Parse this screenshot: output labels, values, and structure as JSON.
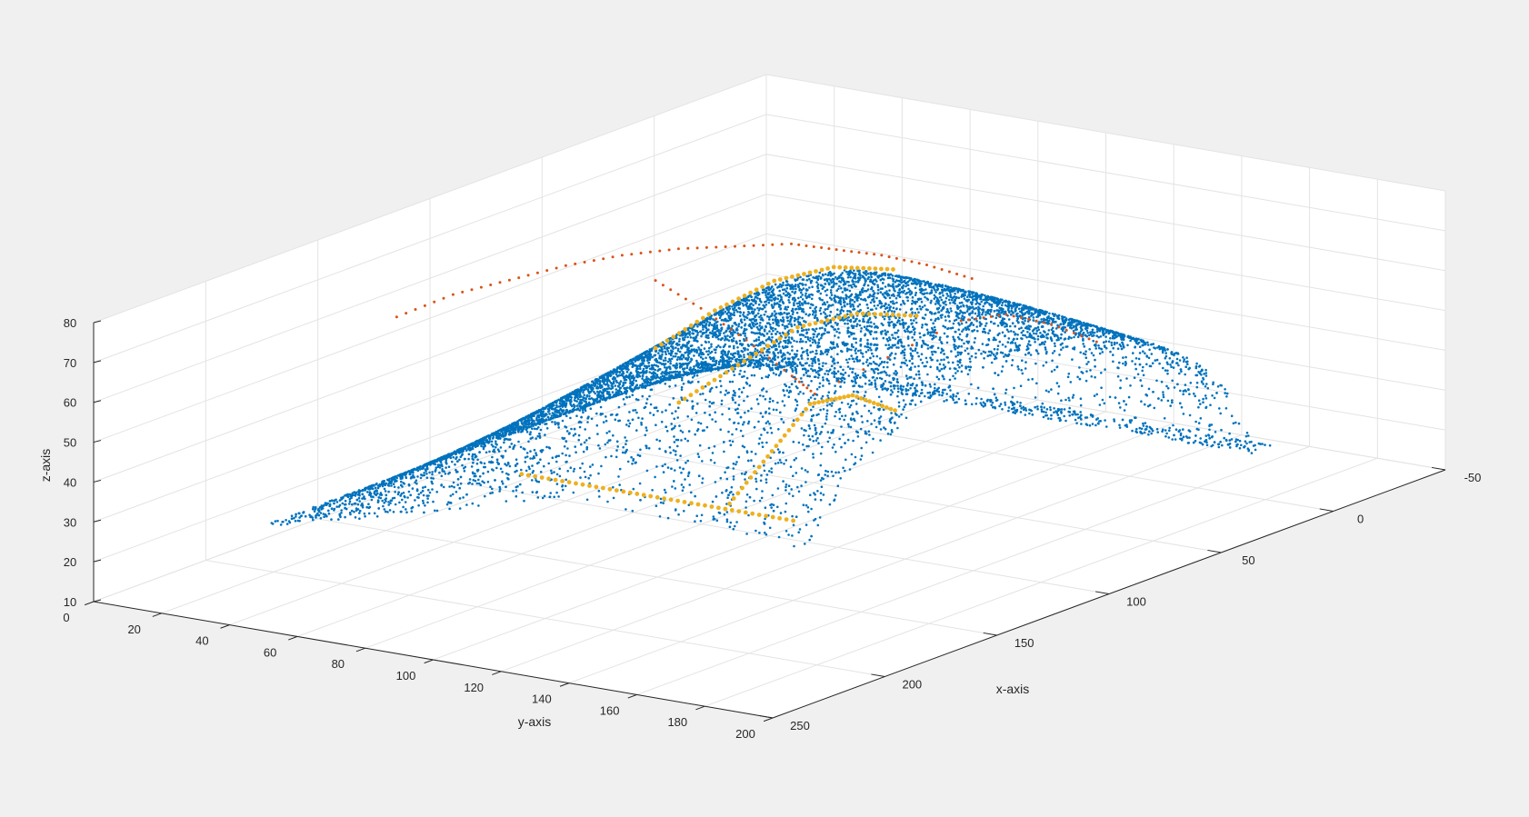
{
  "chart_data": {
    "type": "scatter",
    "title": "",
    "xlabel": "x-axis",
    "ylabel": "y-axis",
    "zlabel": "z-axis",
    "xlim": [
      -50,
      250
    ],
    "ylim": [
      0,
      200
    ],
    "zlim": [
      10,
      80
    ],
    "x_ticks": [
      "-50",
      "0",
      "50",
      "100",
      "150",
      "200",
      "250"
    ],
    "y_ticks": [
      "0",
      "20",
      "40",
      "60",
      "80",
      "100",
      "120",
      "140",
      "160",
      "180",
      "200"
    ],
    "z_ticks": [
      "10",
      "20",
      "30",
      "40",
      "50",
      "60",
      "70",
      "80"
    ],
    "grid": true,
    "colors": {
      "background": "#f0f0f0",
      "axes_background": "#ffffff",
      "grid": "#e3e3e3",
      "surface_series": "#0072bd",
      "outline_series": "#d95319",
      "ridge_series": "#edb120"
    },
    "series": [
      {
        "marker": "point",
        "color": "#0072bd",
        "surface": {
          "u_y_range": [
            10,
            170
          ],
          "v_x_range": [
            -20,
            190
          ],
          "peak_z": 72,
          "base_z": 18,
          "approx_points": 9000
        }
      },
      {
        "marker": "point",
        "color": "#d95319",
        "points_xyz": [
          [
            130,
            10,
            58
          ],
          [
            120,
            20,
            63
          ],
          [
            110,
            30,
            66
          ],
          [
            100,
            40,
            69
          ],
          [
            90,
            50,
            71
          ],
          [
            80,
            60,
            72
          ],
          [
            70,
            70,
            72
          ],
          [
            60,
            80,
            72
          ],
          [
            55,
            90,
            71
          ],
          [
            50,
            100,
            70
          ],
          [
            45,
            110,
            68
          ],
          [
            40,
            120,
            65
          ],
          [
            60,
            40,
            57
          ],
          [
            70,
            60,
            55
          ],
          [
            80,
            80,
            52
          ],
          [
            90,
            100,
            48
          ],
          [
            95,
            110,
            46
          ],
          [
            60,
            130,
            60
          ],
          [
            55,
            140,
            62
          ],
          [
            50,
            150,
            60
          ],
          [
            45,
            160,
            56
          ]
        ]
      },
      {
        "marker": "dot",
        "color": "#edb120",
        "ridges": [
          {
            "from_y": 40,
            "to_y": 110,
            "x": 60,
            "z_profile": [
              40,
              52,
              62,
              68,
              70
            ]
          },
          {
            "from_y": 70,
            "to_y": 140,
            "x": 95,
            "z_profile": [
              38,
              50,
              62,
              68,
              70
            ]
          },
          {
            "from_y": 120,
            "to_y": 170,
            "x": 150,
            "z_profile": [
              30,
              45,
              60,
              64,
              62
            ]
          },
          {
            "from_y": 60,
            "to_y": 140,
            "x": 150,
            "z_profile": [
              30,
              30,
              30,
              30,
              30
            ]
          }
        ]
      }
    ]
  }
}
